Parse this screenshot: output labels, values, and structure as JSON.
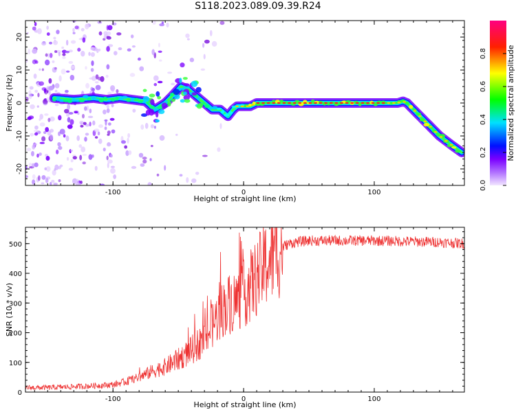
{
  "title": "S118.2023.089.09.39.R24",
  "chart_data": [
    {
      "type": "heatmap",
      "xlabel": "Height of straight line (km)",
      "ylabel": "Frequency (Hz)",
      "xlim": [
        -167,
        169
      ],
      "ylim": [
        -25,
        25
      ],
      "xticks": [
        -100,
        0,
        100
      ],
      "yticks": [
        -20,
        -10,
        0,
        10,
        20
      ],
      "colorbar": {
        "label": "Normalized spectral amplitude",
        "range": [
          0,
          1
        ],
        "ticks": [
          "0.0",
          "0.2",
          "0.4",
          "0.6",
          "0.8"
        ],
        "colors": [
          "#f0e0ff",
          "#9a00ff",
          "#0000ff",
          "#00e0ff",
          "#00ff00",
          "#ffff00",
          "#ff0000",
          "#ff0080"
        ]
      },
      "ridge": {
        "x": [
          -145,
          -130,
          -115,
          -105,
          -95,
          -85,
          -75,
          -68,
          -60,
          -55,
          -48,
          -42,
          -36,
          -30,
          -24,
          -18,
          -15,
          -12,
          -8,
          -5,
          0,
          5,
          10,
          20,
          40,
          60,
          80,
          100,
          110,
          118,
          122,
          125,
          130,
          140,
          150,
          160,
          167
        ],
        "y": [
          1.5,
          1,
          1.5,
          1,
          1.5,
          1,
          0.5,
          -2,
          0,
          2,
          5,
          4,
          2,
          0,
          -2,
          -2,
          -3,
          -4,
          -2,
          -1,
          -1,
          -1,
          0,
          0,
          0,
          0,
          0,
          0,
          0,
          0,
          0.5,
          0,
          -2,
          -6,
          -10,
          -13,
          -15
        ]
      }
    },
    {
      "type": "line",
      "xlabel": "Height of straight line (km)",
      "ylabel": "SNR (10 * v/v)",
      "xlim": [
        -167,
        169
      ],
      "ylim": [
        0,
        555
      ],
      "xticks": [
        -100,
        0,
        100
      ],
      "yticks": [
        0,
        100,
        200,
        300,
        400,
        500
      ],
      "color": "#ee3333",
      "envelope": {
        "x": [
          -167,
          -150,
          -120,
          -100,
          -90,
          -80,
          -70,
          -60,
          -50,
          -40,
          -30,
          -25,
          -20,
          -15,
          -10,
          -5,
          0,
          5,
          10,
          15,
          20,
          25,
          30,
          35,
          40,
          50,
          70,
          100,
          120,
          150,
          169
        ],
        "y": [
          15,
          15,
          20,
          25,
          35,
          50,
          70,
          85,
          110,
          140,
          180,
          215,
          255,
          285,
          300,
          310,
          330,
          355,
          385,
          420,
          445,
          468,
          490,
          500,
          505,
          510,
          510,
          510,
          508,
          505,
          500
        ]
      }
    }
  ]
}
